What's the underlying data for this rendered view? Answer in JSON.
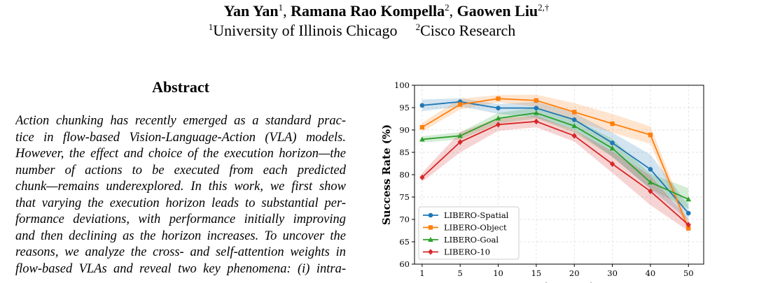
{
  "header": {
    "authors": [
      {
        "name": "Yan Yan",
        "sup": "1"
      },
      {
        "name": "Ramana Rao Kompella",
        "sup": "2"
      },
      {
        "name": "Gaowen Liu",
        "sup": "2,†"
      }
    ],
    "affiliations": [
      {
        "sup": "1",
        "name": "University of Illinois Chicago"
      },
      {
        "sup": "2",
        "name": "Cisco Research"
      }
    ]
  },
  "abstract": {
    "title": "Abstract",
    "lines": [
      "Action chunking has recently emerged as a standard prac-",
      "tice in flow-based Vision-Language-Action (VLA) models.",
      "However, the effect and choice of the execution horizon—the",
      "number of actions to be executed from each predicted",
      "chunk—remains underexplored. In this work, we first show",
      "that varying the execution horizon leads to substantial per-",
      "formance deviations, with performance initially improving",
      "and then declining as the horizon increases. To uncover the",
      "reasons, we analyze the cross- and self-attention weights in",
      "flow-based VLAs and reveal two key phenomena: (i) intra-"
    ]
  },
  "chart_data": {
    "type": "line",
    "title": "",
    "xlabel": "Execution Horizon",
    "ylabel": "Success Rate (%)",
    "categories": [
      "1",
      "5",
      "10",
      "15",
      "20",
      "30",
      "40",
      "50"
    ],
    "ylim": [
      60,
      100
    ],
    "yticks": [
      60,
      65,
      70,
      75,
      80,
      85,
      90,
      95,
      100
    ],
    "grid": true,
    "legend": "bottom-left",
    "series": [
      {
        "name": "LIBERO-Spatial",
        "color": "#1f77b4",
        "marker": "circle",
        "values": [
          95.5,
          96.3,
          94.9,
          94.9,
          92.3,
          87.1,
          81.2,
          71.4
        ],
        "lower": [
          94.2,
          95.3,
          93.6,
          92.8,
          90.0,
          84.0,
          76.8,
          69.8
        ],
        "upper": [
          96.8,
          97.1,
          95.8,
          96.3,
          93.8,
          89.4,
          84.5,
          73.2
        ]
      },
      {
        "name": "LIBERO-Object",
        "color": "#ff7f0e",
        "marker": "square",
        "values": [
          90.6,
          95.7,
          97.0,
          96.6,
          94.0,
          91.4,
          88.9,
          68.0
        ],
        "lower": [
          89.6,
          94.6,
          96.2,
          95.2,
          92.0,
          89.4,
          86.9,
          67.0
        ],
        "upper": [
          91.6,
          97.0,
          97.8,
          97.9,
          96.0,
          93.6,
          90.8,
          69.2
        ]
      },
      {
        "name": "LIBERO-Goal",
        "color": "#2ca02c",
        "marker": "triangle",
        "values": [
          87.9,
          88.7,
          92.6,
          93.8,
          90.9,
          85.9,
          78.3,
          74.5
        ],
        "lower": [
          87.2,
          87.9,
          91.4,
          92.6,
          89.4,
          84.0,
          76.8,
          72.4
        ],
        "upper": [
          88.6,
          89.5,
          93.8,
          95.0,
          92.5,
          88.0,
          80.2,
          77.0
        ]
      },
      {
        "name": "LIBERO-10",
        "color": "#d62728",
        "marker": "diamond",
        "values": [
          79.4,
          87.3,
          91.2,
          91.9,
          88.7,
          82.4,
          76.3,
          68.8
        ],
        "lower": [
          78.4,
          85.0,
          89.8,
          90.6,
          87.4,
          80.4,
          73.2,
          67.4
        ],
        "upper": [
          80.4,
          89.5,
          92.6,
          93.2,
          90.0,
          85.2,
          79.8,
          70.0
        ]
      }
    ]
  }
}
